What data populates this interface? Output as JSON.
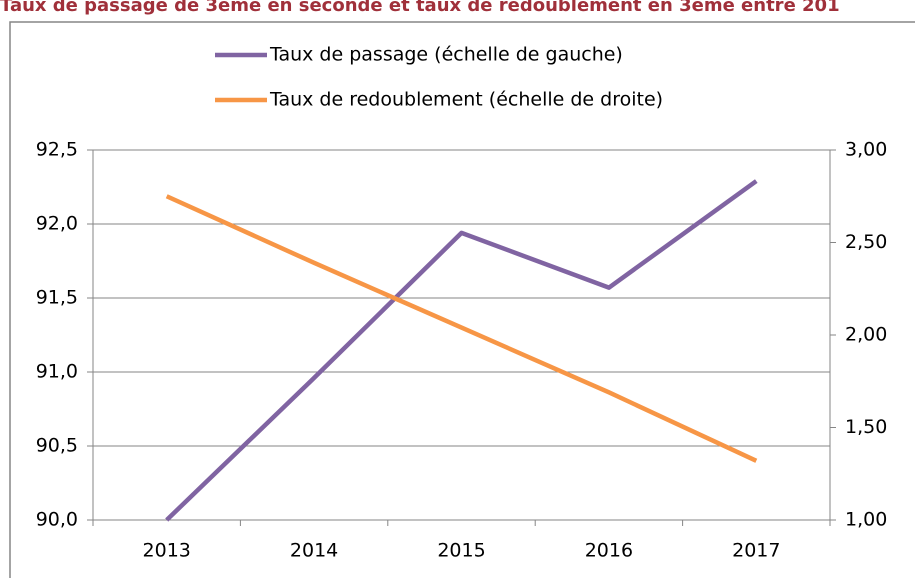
{
  "chart_data": {
    "type": "line",
    "title": "Taux de passage de 3ème en seconde et taux de redoublement en 3ème entre 201",
    "categories": [
      "2013",
      "2014",
      "2015",
      "2016",
      "2017"
    ],
    "series": [
      {
        "name": "Taux de passage (échelle de gauche)",
        "color": "#8064a2",
        "values": [
          90.0,
          90.96,
          91.94,
          91.57,
          92.29
        ]
      },
      {
        "name": "Taux de redoublement (échelle de droite)",
        "color": "#f79646",
        "axis": "y2",
        "values": [
          2.75,
          2.39,
          2.04,
          1.69,
          1.32
        ]
      }
    ],
    "ylim": [
      90.0,
      92.5
    ],
    "yticks": [
      {
        "value": 90.0,
        "label": "90,0"
      },
      {
        "value": 90.5,
        "label": "90,5"
      },
      {
        "value": 91.0,
        "label": "91,0"
      },
      {
        "value": 91.5,
        "label": "91,5"
      },
      {
        "value": 92.0,
        "label": "92,0"
      },
      {
        "value": 92.5,
        "label": "92,5"
      }
    ],
    "y2lim": [
      1.0,
      3.0
    ],
    "y2ticks": [
      {
        "value": 1.0,
        "label": "1,00"
      },
      {
        "value": 1.5,
        "label": "1,50"
      },
      {
        "value": 2.0,
        "label": "2,00"
      },
      {
        "value": 2.5,
        "label": "2,50"
      },
      {
        "value": 3.0,
        "label": "3,00"
      }
    ],
    "grid": true,
    "legend": "top"
  }
}
